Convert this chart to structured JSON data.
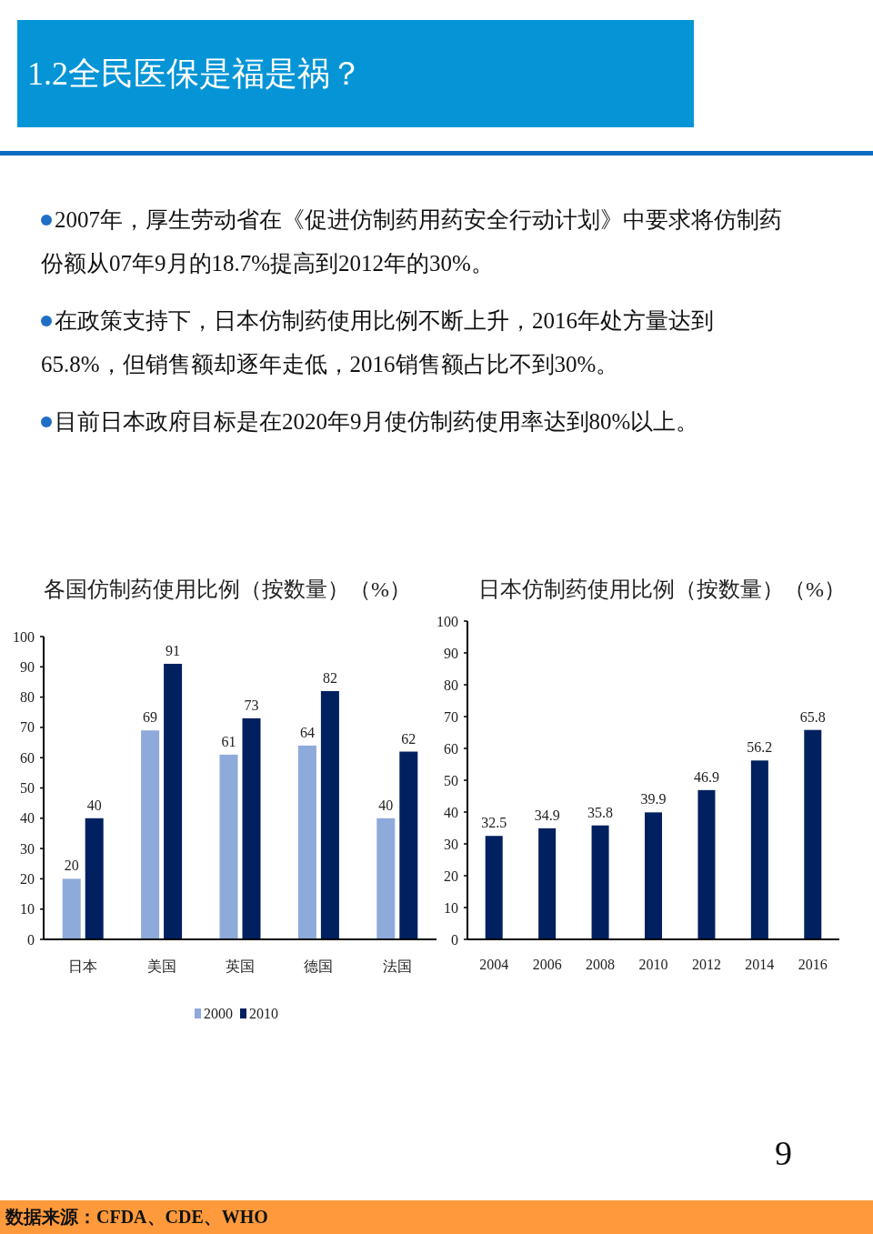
{
  "chart_data": [
    {
      "type": "other",
      "title": "1.2全民医保是福是祸？",
      "annotations": [
        "2007年，厚生劳动省在《促进仿制药用药安全行动计划》中要求将仿制药份额从07年9月的18.7%提高到2012年的30%。",
        "在政策支持下，日本仿制药使用比例不断上升，2016年处方量达到65.8%，但销售额却逐年走低，2016销售额占比不到30%。",
        "目前日本政府目标是在2020年9月使仿制药使用率达到80%以上。",
        "9",
        "数据来源：CFDA、CDE、WHO"
      ]
    },
    {
      "type": "bar",
      "title": "各国仿制药使用比例（按数量）（%）",
      "categories": [
        "日本",
        "美国",
        "英国",
        "德国",
        "法国"
      ],
      "series": [
        {
          "name": "2000",
          "color": "#8eaadb",
          "values": [
            20,
            69,
            61,
            64,
            40
          ]
        },
        {
          "name": "2010",
          "color": "#002060",
          "values": [
            40,
            91,
            73,
            82,
            62
          ]
        }
      ],
      "ylim": [
        0,
        100
      ],
      "yticks": [
        0,
        10,
        20,
        30,
        40,
        50,
        60,
        70,
        80,
        90,
        100
      ],
      "data_labels": true,
      "legend": "bottom"
    },
    {
      "type": "bar",
      "title": "日本仿制药使用比例（按数量）（%）",
      "categories": [
        "2004",
        "2006",
        "2008",
        "2010",
        "2012",
        "2014",
        "2016"
      ],
      "values": [
        32.5,
        34.9,
        35.8,
        39.9,
        46.9,
        56.2,
        65.8
      ],
      "color": "#002060",
      "ylim": [
        0,
        100
      ],
      "yticks": [
        0,
        10,
        20,
        30,
        40,
        50,
        60,
        70,
        80,
        90,
        100
      ],
      "data_labels": true
    }
  ]
}
